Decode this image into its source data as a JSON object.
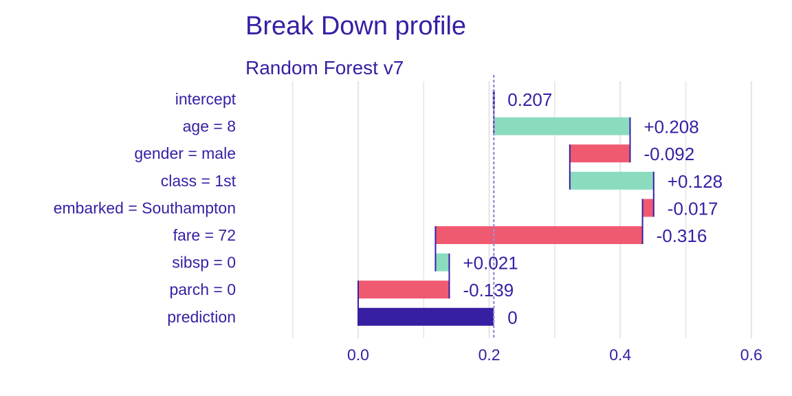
{
  "chart_data": {
    "type": "bar",
    "title": "Break Down profile",
    "subtitle": "Random Forest v7",
    "xlim": [
      -0.1,
      0.6
    ],
    "xticks": [
      "0.0",
      "0.2",
      "0.4",
      "0.6"
    ],
    "xtick_values": [
      0.0,
      0.2,
      0.4,
      0.6
    ],
    "grid": true,
    "baseline_reference": 0.207,
    "rows": [
      {
        "label": "intercept",
        "start": 0.207,
        "end": 0.207,
        "value_label": "0.207",
        "kind": "intercept"
      },
      {
        "label": "age = 8",
        "start": 0.207,
        "end": 0.415,
        "value_label": "+0.208",
        "kind": "positive"
      },
      {
        "label": "gender = male",
        "start": 0.415,
        "end": 0.323,
        "value_label": "-0.092",
        "kind": "negative"
      },
      {
        "label": "class = 1st",
        "start": 0.323,
        "end": 0.451,
        "value_label": "+0.128",
        "kind": "positive"
      },
      {
        "label": "embarked = Southampton",
        "start": 0.451,
        "end": 0.434,
        "value_label": "-0.017",
        "kind": "negative"
      },
      {
        "label": "fare = 72",
        "start": 0.434,
        "end": 0.118,
        "value_label": "-0.316",
        "kind": "negative"
      },
      {
        "label": "sibsp = 0",
        "start": 0.118,
        "end": 0.139,
        "value_label": "+0.021",
        "kind": "positive"
      },
      {
        "label": "parch = 0",
        "start": 0.139,
        "end": 0.0,
        "value_label": "-0.139",
        "kind": "negative"
      },
      {
        "label": "prediction",
        "start": 0.0,
        "end": 0.207,
        "value_label": "0",
        "kind": "prediction"
      }
    ],
    "colors": {
      "positive": "#8bdcbe",
      "negative": "#f05a71",
      "prediction": "#371ea3",
      "text": "#371ea3",
      "grid": "#e6e6e6",
      "reference_line": "#9c8fd6"
    }
  }
}
